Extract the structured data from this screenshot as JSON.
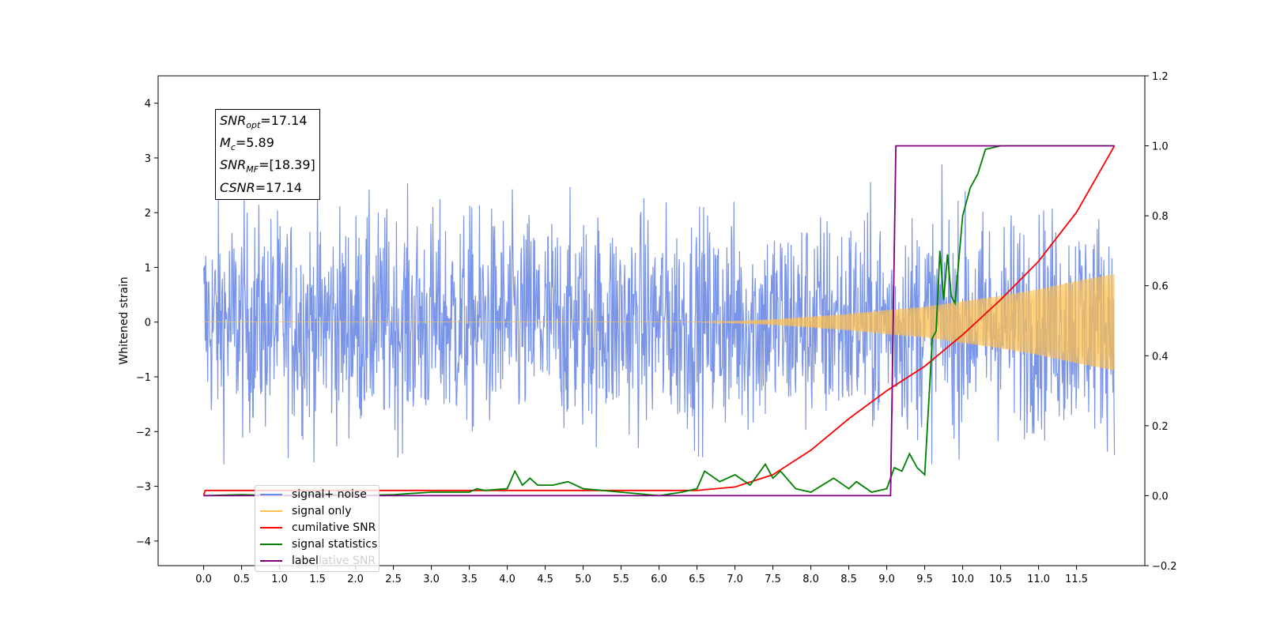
{
  "chart_data": {
    "type": "line",
    "ylabel": "Whitened strain",
    "xlim": [
      -0.6,
      12.4
    ],
    "ylim": [
      -4.45,
      4.5
    ],
    "ylim_right": [
      -0.2,
      1.2
    ],
    "x_ticks": [
      "0.0",
      "0.5",
      "1.0",
      "1.5",
      "2.0",
      "2.5",
      "3.0",
      "3.5",
      "4.0",
      "4.5",
      "5.0",
      "5.5",
      "6.0",
      "6.5",
      "7.0",
      "7.5",
      "8.0",
      "8.5",
      "9.0",
      "9.5",
      "10.0",
      "10.5",
      "11.0",
      "11.5"
    ],
    "y_ticks": [
      "4",
      "3",
      "2",
      "1",
      "0",
      "−1",
      "−2",
      "−3",
      "−4"
    ],
    "y_right_ticks": [
      "1.2",
      "1.0",
      "0.8",
      "0.6",
      "0.4",
      "0.2",
      "0.0",
      "−0.2"
    ],
    "annotations": {
      "snr_opt": {
        "sym": "SNR",
        "sub": "opt",
        "value": "=17.14"
      },
      "mc": {
        "sym": "M",
        "sub": "c",
        "value": "=5.89"
      },
      "snr_mf": {
        "sym": "SNR",
        "sub": "MF",
        "value": "=[18.39]"
      },
      "csnr": {
        "sym": "CSNR",
        "value": "=17.14"
      }
    },
    "legend_location": "lower-left",
    "legend": [
      {
        "label": "signal+ noise",
        "color": "#6b8ae5"
      },
      {
        "label": "signal only",
        "color": "#ffc04d"
      },
      {
        "label": "cumilative SNR",
        "color": "#ff0000"
      },
      {
        "label": "signal statistics",
        "color": "#008000"
      },
      {
        "label": "label",
        "color": "#800080"
      }
    ],
    "legend_ghost": "lative SNR",
    "series": [
      {
        "name": "signal+ noise",
        "axis": "left",
        "kind": "noise",
        "x_range": [
          0,
          12
        ],
        "amplitude_std": 1.0,
        "color": "#6b8ae5"
      },
      {
        "name": "signal only",
        "axis": "left",
        "kind": "chirp",
        "x_range": [
          0,
          12
        ],
        "envelope": [
          [
            0,
            0.0
          ],
          [
            6.5,
            0.0
          ],
          [
            7.0,
            0.02
          ],
          [
            7.5,
            0.05
          ],
          [
            8.0,
            0.1
          ],
          [
            8.5,
            0.15
          ],
          [
            9.0,
            0.22
          ],
          [
            9.5,
            0.28
          ],
          [
            10.0,
            0.38
          ],
          [
            10.5,
            0.48
          ],
          [
            11.0,
            0.6
          ],
          [
            11.5,
            0.75
          ],
          [
            12.0,
            0.88
          ]
        ],
        "color": "#ffc04d"
      },
      {
        "name": "cumilative SNR",
        "axis": "right",
        "x": [
          0,
          0.02,
          6.5,
          7.0,
          7.5,
          8.0,
          8.5,
          9.0,
          9.5,
          10.0,
          10.5,
          11.0,
          11.5,
          12.0
        ],
        "y": [
          0.0,
          0.015,
          0.015,
          0.025,
          0.06,
          0.13,
          0.22,
          0.3,
          0.37,
          0.46,
          0.56,
          0.67,
          0.81,
          1.0
        ],
        "color": "#ff0000"
      },
      {
        "name": "signal statistics",
        "axis": "right",
        "x": [
          0,
          0.5,
          1.0,
          1.5,
          2.0,
          2.5,
          3.0,
          3.5,
          3.6,
          3.7,
          4.0,
          4.1,
          4.2,
          4.3,
          4.4,
          4.6,
          4.8,
          5.0,
          5.5,
          6.0,
          6.3,
          6.5,
          6.6,
          6.8,
          7.0,
          7.2,
          7.4,
          7.5,
          7.6,
          7.8,
          8.0,
          8.3,
          8.5,
          8.6,
          8.8,
          9.0,
          9.1,
          9.2,
          9.3,
          9.4,
          9.5,
          9.6,
          9.65,
          9.7,
          9.75,
          9.8,
          9.85,
          9.9,
          10.0,
          10.1,
          10.2,
          10.3,
          10.5,
          12.0
        ],
        "y": [
          0.0,
          0.003,
          0.0,
          0.005,
          0.0,
          0.003,
          0.01,
          0.01,
          0.02,
          0.015,
          0.02,
          0.07,
          0.03,
          0.05,
          0.03,
          0.03,
          0.04,
          0.02,
          0.01,
          0.0,
          0.01,
          0.02,
          0.07,
          0.04,
          0.06,
          0.03,
          0.09,
          0.05,
          0.07,
          0.02,
          0.01,
          0.05,
          0.02,
          0.04,
          0.01,
          0.02,
          0.08,
          0.07,
          0.12,
          0.08,
          0.06,
          0.45,
          0.47,
          0.7,
          0.56,
          0.69,
          0.57,
          0.55,
          0.8,
          0.88,
          0.92,
          0.99,
          1.0,
          1.0
        ],
        "color": "#008000"
      },
      {
        "name": "label",
        "axis": "right",
        "x": [
          0,
          9.05,
          9.12,
          12.0
        ],
        "y": [
          0.0,
          0.0,
          1.0,
          1.0
        ],
        "color": "#800080"
      }
    ]
  }
}
